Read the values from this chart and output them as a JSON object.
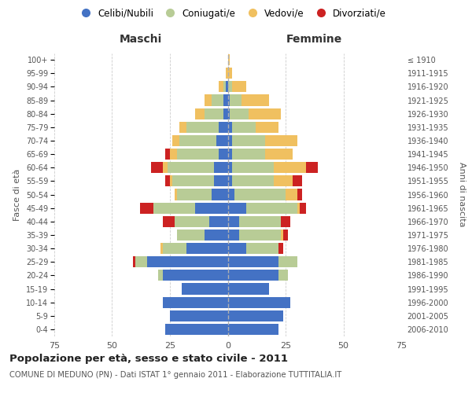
{
  "age_groups": [
    "0-4",
    "5-9",
    "10-14",
    "15-19",
    "20-24",
    "25-29",
    "30-34",
    "35-39",
    "40-44",
    "45-49",
    "50-54",
    "55-59",
    "60-64",
    "65-69",
    "70-74",
    "75-79",
    "80-84",
    "85-89",
    "90-94",
    "95-99",
    "100+"
  ],
  "birth_years": [
    "2006-2010",
    "2001-2005",
    "1996-2000",
    "1991-1995",
    "1986-1990",
    "1981-1985",
    "1976-1980",
    "1971-1975",
    "1966-1970",
    "1961-1965",
    "1956-1960",
    "1951-1955",
    "1946-1950",
    "1941-1945",
    "1936-1940",
    "1931-1935",
    "1926-1930",
    "1921-1925",
    "1916-1920",
    "1911-1915",
    "≤ 1910"
  ],
  "colors": {
    "celibi": "#4472c4",
    "coniugati": "#b8cc96",
    "vedovi": "#f0c060",
    "divorziati": "#cc2222"
  },
  "maschi": {
    "celibi": [
      27,
      25,
      28,
      20,
      28,
      35,
      18,
      10,
      8,
      14,
      7,
      6,
      6,
      4,
      5,
      4,
      2,
      2,
      1,
      0,
      0
    ],
    "coniugati": [
      0,
      0,
      0,
      0,
      2,
      5,
      10,
      12,
      15,
      18,
      15,
      18,
      20,
      18,
      16,
      14,
      8,
      5,
      1,
      0,
      0
    ],
    "vedovi": [
      0,
      0,
      0,
      0,
      0,
      0,
      1,
      0,
      0,
      0,
      1,
      1,
      2,
      3,
      3,
      3,
      4,
      3,
      2,
      1,
      0
    ],
    "divorziati": [
      0,
      0,
      0,
      0,
      0,
      1,
      0,
      0,
      5,
      6,
      0,
      2,
      5,
      2,
      0,
      0,
      0,
      0,
      0,
      0,
      0
    ]
  },
  "femmine": {
    "celibi": [
      22,
      24,
      27,
      18,
      22,
      22,
      8,
      5,
      5,
      8,
      3,
      2,
      2,
      2,
      2,
      2,
      1,
      1,
      0,
      0,
      0
    ],
    "coniugati": [
      0,
      0,
      0,
      0,
      4,
      8,
      14,
      18,
      18,
      22,
      22,
      18,
      18,
      14,
      14,
      10,
      8,
      5,
      2,
      0,
      0
    ],
    "vedovi": [
      0,
      0,
      0,
      0,
      0,
      0,
      0,
      1,
      0,
      1,
      5,
      8,
      14,
      12,
      14,
      10,
      14,
      12,
      6,
      2,
      1
    ],
    "divorziati": [
      0,
      0,
      0,
      0,
      0,
      0,
      2,
      2,
      4,
      3,
      2,
      4,
      5,
      0,
      0,
      0,
      0,
      0,
      0,
      0,
      0
    ]
  },
  "title": "Popolazione per età, sesso e stato civile - 2011",
  "subtitle": "COMUNE DI MEDUNO (PN) - Dati ISTAT 1° gennaio 2011 - Elaborazione TUTTITALIA.IT",
  "xlabel_left": "Maschi",
  "xlabel_right": "Femmine",
  "ylabel_left": "Fasce di età",
  "ylabel_right": "Anni di nascita",
  "xlim": 75,
  "xticks": [
    -75,
    -50,
    -25,
    0,
    25,
    50,
    75
  ],
  "legend_labels": [
    "Celibi/Nubili",
    "Coniugati/e",
    "Vedovi/e",
    "Divorziati/e"
  ],
  "background_color": "#ffffff",
  "bar_height": 0.82
}
